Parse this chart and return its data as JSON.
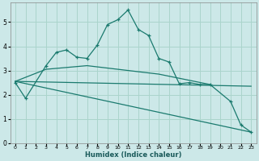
{
  "xlabel": "Humidex (Indice chaleur)",
  "ylabel": "",
  "background_color": "#cce8e8",
  "grid_color": "#aad4cc",
  "line_color": "#1a7a6e",
  "xlim": [
    -0.5,
    23.5
  ],
  "ylim": [
    0,
    5.8
  ],
  "xticks": [
    0,
    1,
    2,
    3,
    4,
    5,
    6,
    7,
    8,
    9,
    10,
    11,
    12,
    13,
    14,
    15,
    16,
    17,
    18,
    19,
    20,
    21,
    22,
    23
  ],
  "yticks": [
    0,
    1,
    2,
    3,
    4,
    5
  ],
  "line1_x": [
    0,
    1,
    3,
    4,
    5,
    6,
    7,
    8,
    9,
    10,
    11,
    12,
    13,
    14,
    15,
    16,
    17,
    18,
    19,
    21,
    22,
    23
  ],
  "line1_y": [
    2.5,
    1.85,
    3.2,
    3.75,
    3.85,
    3.55,
    3.5,
    4.05,
    4.9,
    5.1,
    5.5,
    4.7,
    4.45,
    3.5,
    3.35,
    2.45,
    2.5,
    2.42,
    2.42,
    1.72,
    0.75,
    0.45
  ],
  "line2_x": [
    0,
    23
  ],
  "line2_y": [
    2.55,
    2.35
  ],
  "line3_x": [
    0,
    23
  ],
  "line3_y": [
    2.55,
    0.45
  ],
  "line4_x": [
    0,
    3,
    7,
    14,
    19
  ],
  "line4_y": [
    2.55,
    3.05,
    3.2,
    2.85,
    2.42
  ]
}
